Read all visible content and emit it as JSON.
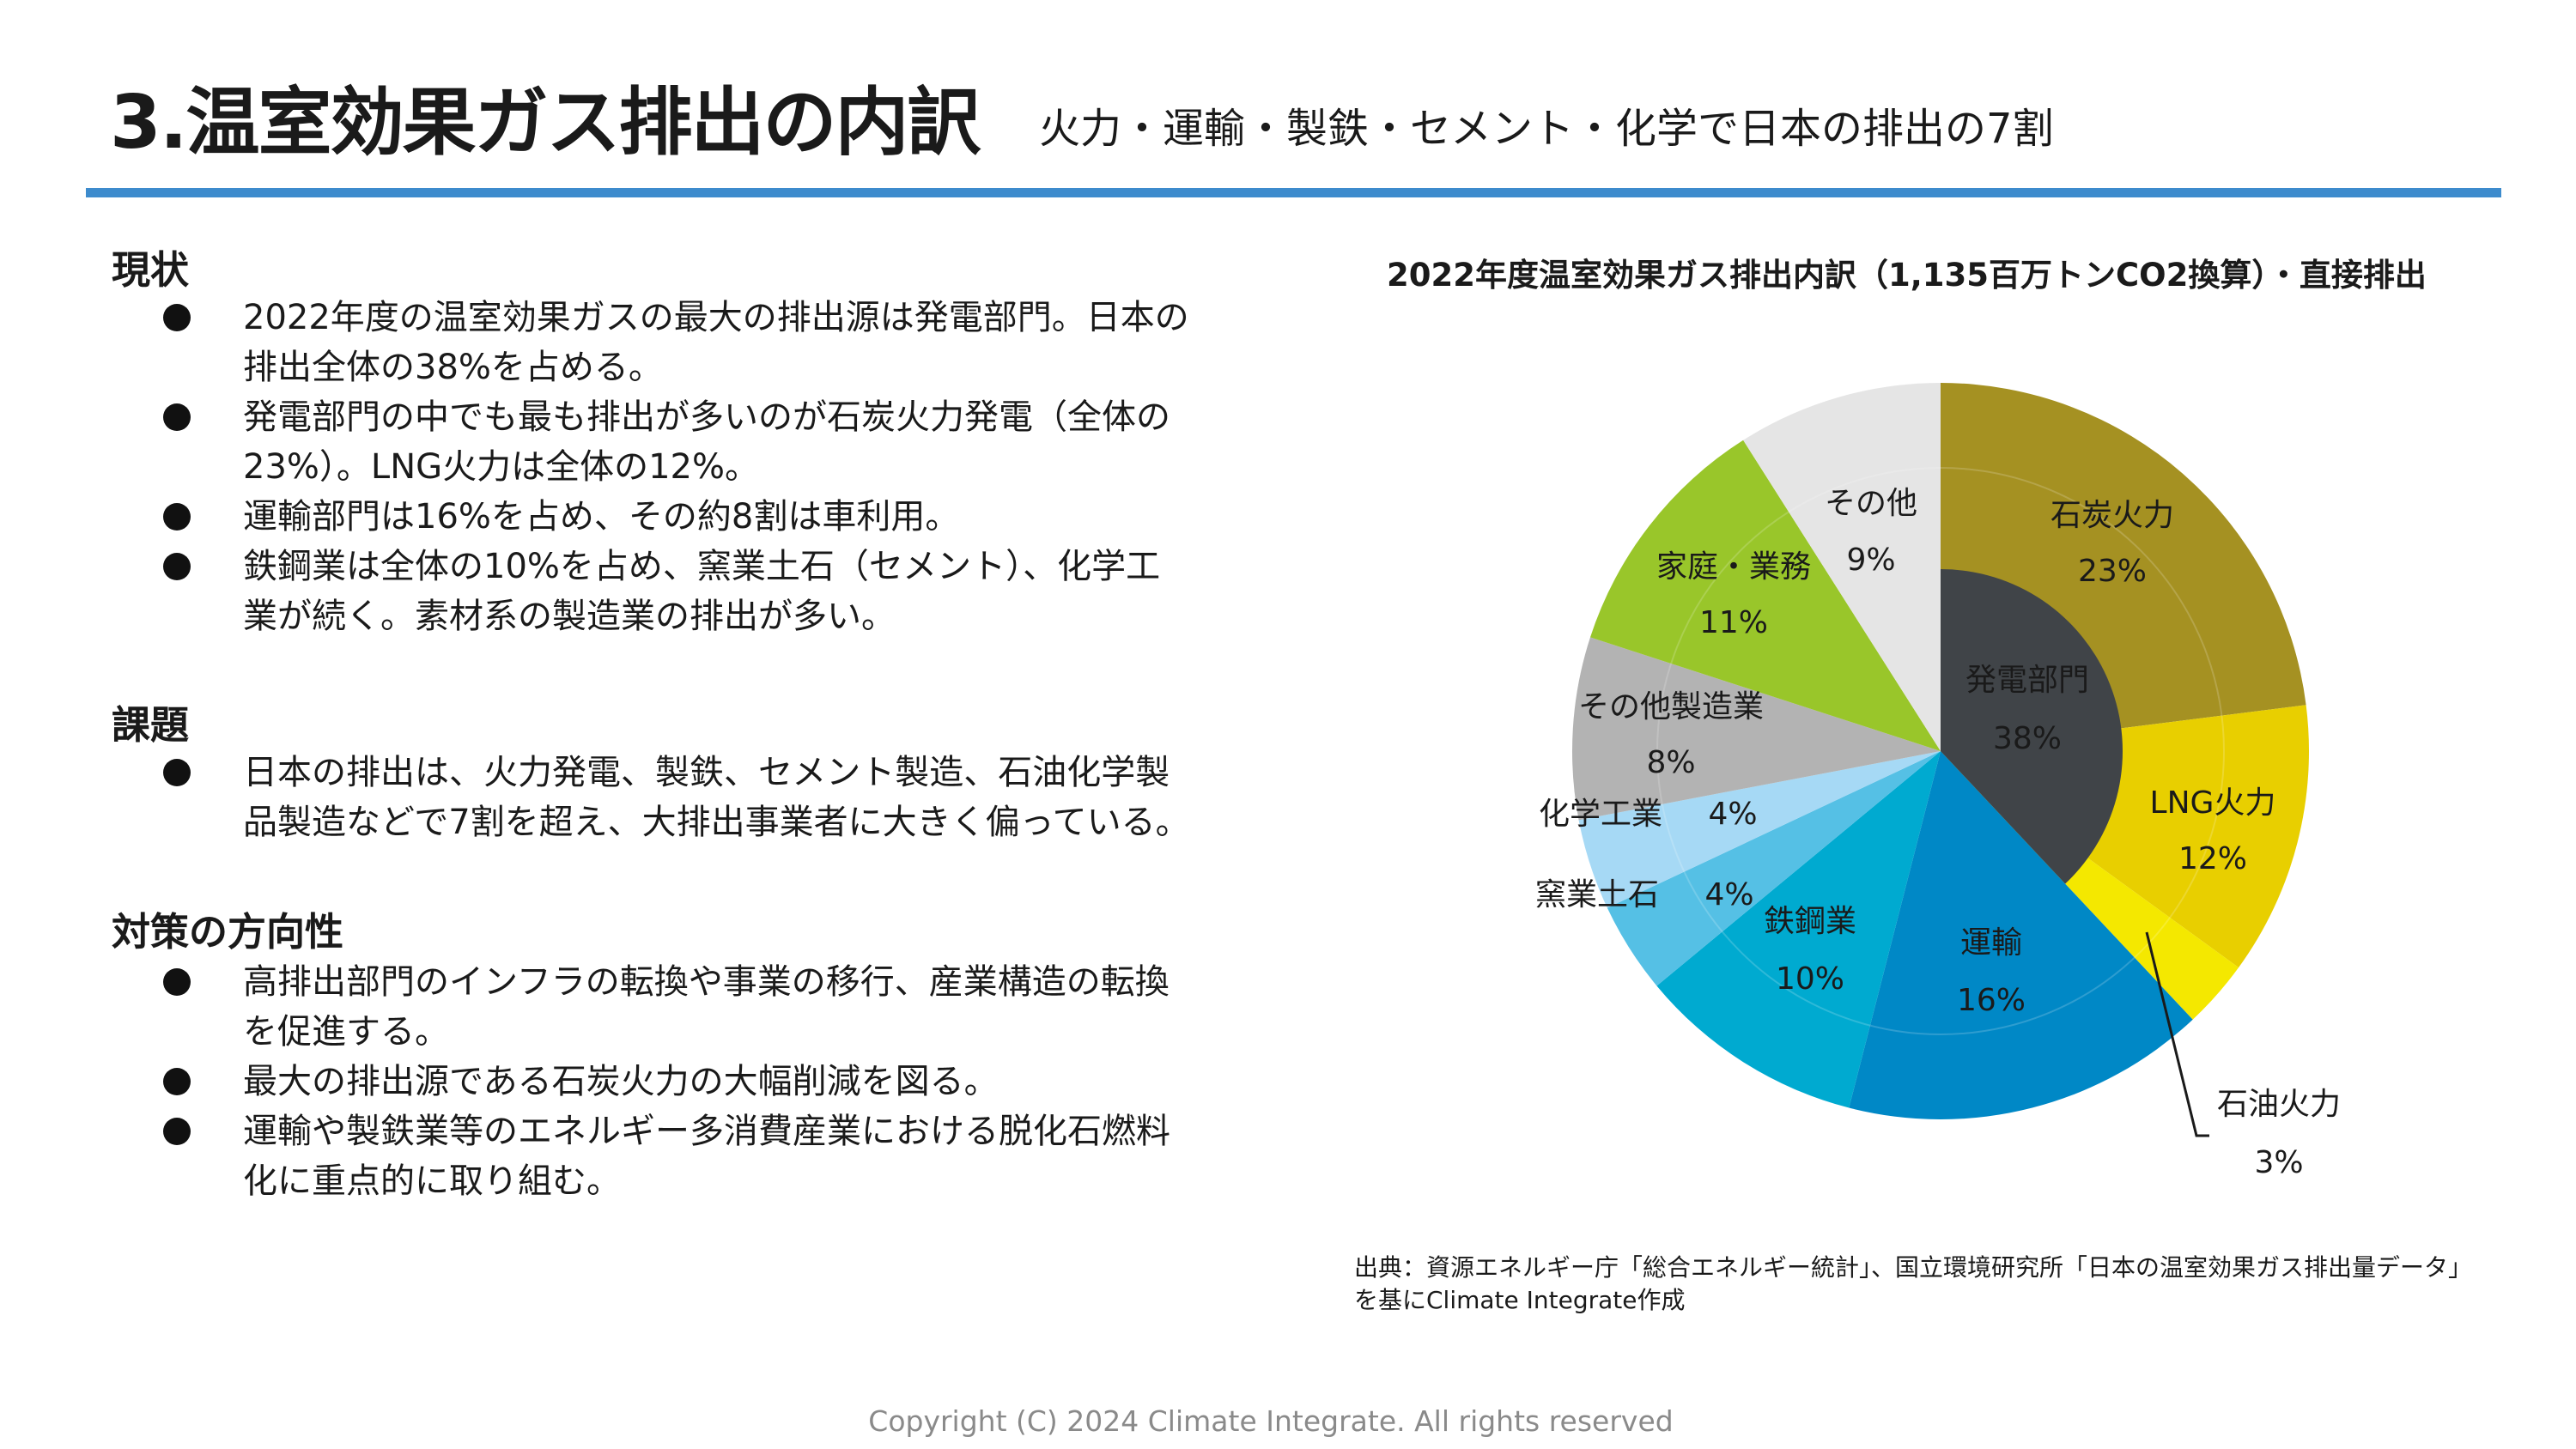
{
  "header": {
    "title": "3.温室効果ガス排出の内訳",
    "subtitle": "火力・運輸・製鉄・セメント・化学で日本の排出の7割"
  },
  "sections": [
    {
      "heading": "現状",
      "bullets": [
        [
          "2022年度の温室効果ガスの最大の排出源は発電部門。日本の",
          "排出全体の38%を占める。"
        ],
        [
          "発電部門の中でも最も排出が多いのが石炭火力発電（全体の",
          "23%）。LNG火力は全体の12%。"
        ],
        [
          "運輸部門は16%を占め、その約8割は車利用。"
        ],
        [
          "鉄鋼業は全体の10%を占め、窯業土石（セメント）、化学工",
          "業が続く。素材系の製造業の排出が多い。"
        ]
      ]
    },
    {
      "heading": "課題",
      "bullets": [
        [
          "日本の排出は、火力発電、製鉄、セメント製造、石油化学製",
          "品製造などで7割を超え、大排出事業者に大きく偏っている。"
        ]
      ]
    },
    {
      "heading": "対策の方向性",
      "bullets": [
        [
          "高排出部門のインフラの転換や事業の移行、産業構造の転換",
          "を促進する。"
        ],
        [
          "最大の排出源である石炭火力の大幅削減を図る。"
        ],
        [
          "運輸や製鉄業等のエネルギー多消費産業における脱化石燃料",
          "化に重点的に取り組む。"
        ]
      ]
    }
  ],
  "chart_data": {
    "type": "pie",
    "title": "2022年度温室効果ガス排出内訳（1,135百万トンCO2換算）・直接排出",
    "unit": "%",
    "inner": [
      {
        "name": "発電部門",
        "value": 38,
        "label": "38%",
        "color": "#404448"
      }
    ],
    "outer": [
      {
        "name": "石炭火力",
        "value": 23,
        "label": "23%",
        "color": "#a59122"
      },
      {
        "name": "LNG火力",
        "value": 12,
        "label": "12%",
        "color": "#e8cf00"
      },
      {
        "name": "石油火力",
        "value": 3,
        "label": "3%",
        "color": "#f4e800"
      },
      {
        "name": "運輸",
        "value": 16,
        "label": "16%",
        "color": "#0088c6"
      },
      {
        "name": "鉄鋼業",
        "value": 10,
        "label": "10%",
        "color": "#00aad0"
      },
      {
        "name": "窯業土石",
        "value": 4,
        "label": "4%",
        "color": "#55c0e5"
      },
      {
        "name": "化学工業",
        "value": 4,
        "label": "4%",
        "color": "#a6d9f5"
      },
      {
        "name": "その他製造業",
        "value": 8,
        "label": "8%",
        "color": "#b3b3b3"
      },
      {
        "name": "家庭・業務",
        "value": 11,
        "label": "11%",
        "color": "#99c62a"
      },
      {
        "name": "その他",
        "value": 9,
        "label": "9%",
        "color": "#e5e5e5"
      }
    ]
  },
  "source": "出典：資源エネルギー庁「総合エネルギー統計」、国立環境研究所「日本の温室効果ガス排出量データ」を基にClimate Integrate作成",
  "footer": {
    "copyright": "Copyright (C) 2024 Climate Integrate. All rights reserved"
  }
}
